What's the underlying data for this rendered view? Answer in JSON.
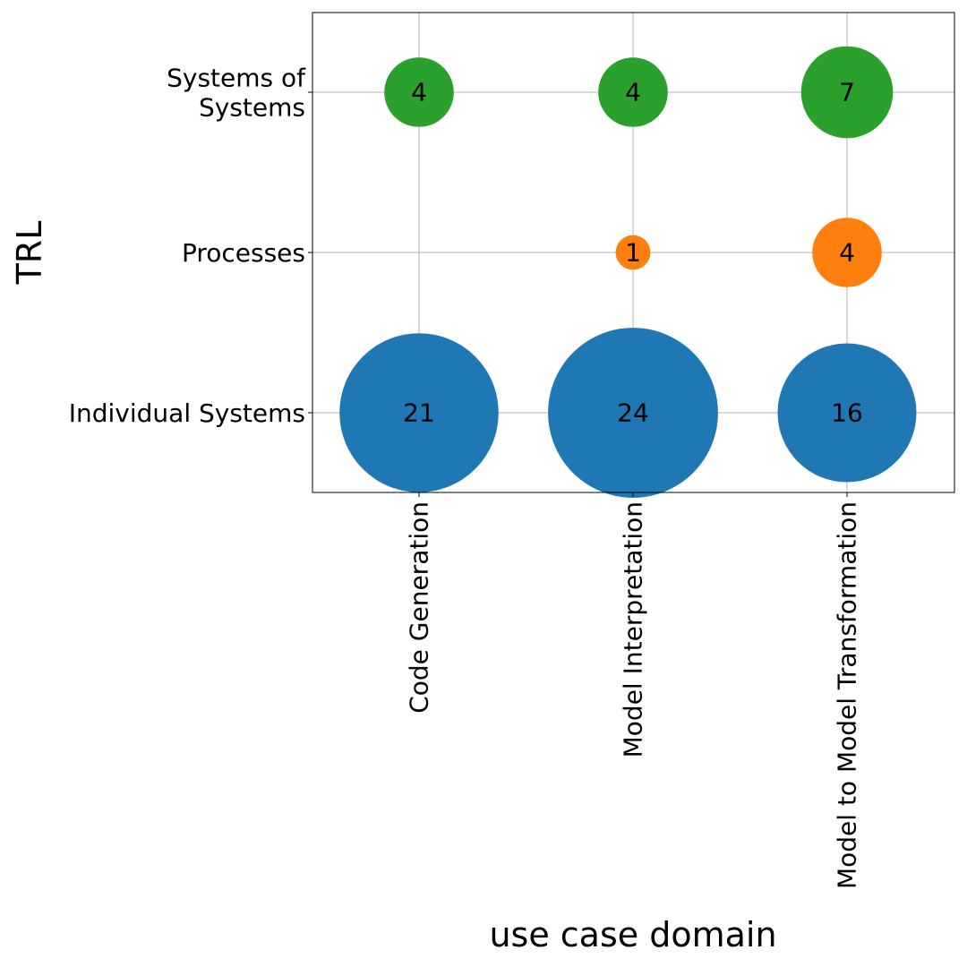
{
  "chart_data": {
    "type": "scatter",
    "subtype": "bubble",
    "title": "",
    "xlabel": "use case domain",
    "ylabel": "TRL",
    "categories": [
      "Code Generation",
      "Model Interpretation",
      "Model to Model Transformation"
    ],
    "y_categories": [
      [
        "Individual Systems"
      ],
      [
        "Processes"
      ],
      [
        "Systems of",
        "Systems"
      ]
    ],
    "grid": true,
    "legend": "none",
    "series": [
      {
        "y_category": "Individual Systems",
        "color": "#1f77b4",
        "points": [
          {
            "x": "Code Generation",
            "value": 21
          },
          {
            "x": "Model Interpretation",
            "value": 24
          },
          {
            "x": "Model to Model Transformation",
            "value": 16
          }
        ]
      },
      {
        "y_category": "Processes",
        "color": "#ff7f0e",
        "points": [
          {
            "x": "Model Interpretation",
            "value": 1
          },
          {
            "x": "Model to Model Transformation",
            "value": 4
          }
        ]
      },
      {
        "y_category": "Systems of Systems",
        "color": "#2ca02c",
        "points": [
          {
            "x": "Code Generation",
            "value": 4
          },
          {
            "x": "Model Interpretation",
            "value": 4
          },
          {
            "x": "Model to Model Transformation",
            "value": 7
          }
        ]
      }
    ]
  }
}
